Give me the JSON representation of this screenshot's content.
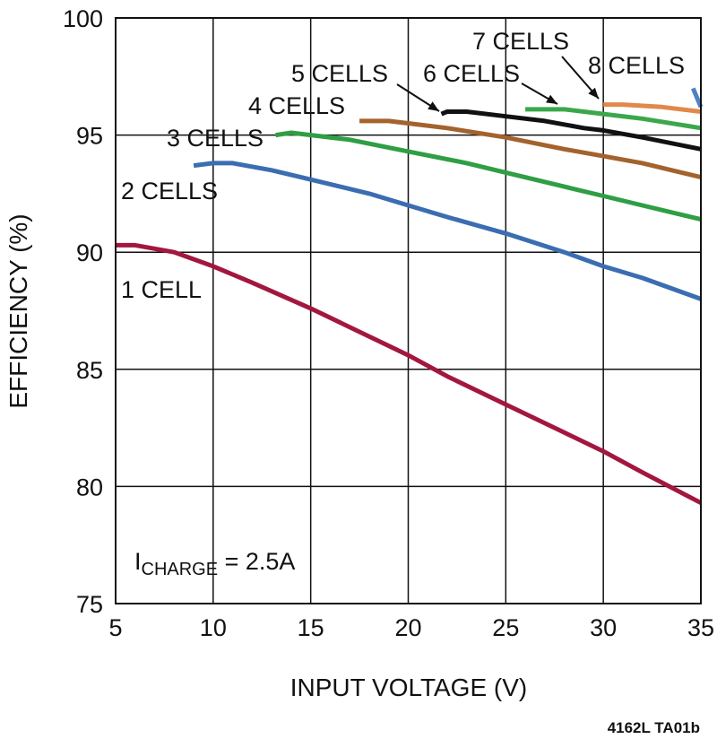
{
  "chart_data": {
    "type": "line",
    "title": "",
    "xlabel": "INPUT VOLTAGE (V)",
    "ylabel": "EFFICIENCY (%)",
    "xlim": [
      5,
      35
    ],
    "ylim": [
      75,
      100
    ],
    "xticks": [
      "5",
      "10",
      "15",
      "20",
      "25",
      "30",
      "35"
    ],
    "yticks": [
      "75",
      "80",
      "85",
      "90",
      "95",
      "100"
    ],
    "grid": true,
    "annotation": {
      "main": "I",
      "sub": "CHARGE",
      "rest": " = 2.5A"
    },
    "footnote": "4162L TA01b",
    "series": [
      {
        "name": "1 CELL",
        "color": "#a3173f",
        "x": [
          5,
          6,
          8,
          10,
          12,
          15,
          18,
          20,
          22,
          25,
          28,
          30,
          32,
          35
        ],
        "y": [
          90.3,
          90.3,
          90.0,
          89.4,
          88.7,
          87.6,
          86.4,
          85.6,
          84.7,
          83.5,
          82.3,
          81.5,
          80.6,
          79.3
        ]
      },
      {
        "name": "2 CELLS",
        "color": "#3b6db2",
        "x": [
          9,
          10,
          11,
          13,
          15,
          18,
          20,
          22,
          25,
          28,
          30,
          32,
          35
        ],
        "y": [
          93.7,
          93.8,
          93.8,
          93.5,
          93.1,
          92.5,
          92.0,
          91.5,
          90.8,
          90.0,
          89.4,
          88.9,
          88.0
        ]
      },
      {
        "name": "3 CELLS",
        "color": "#2f9e44",
        "x": [
          13.2,
          14,
          15,
          17,
          20,
          23,
          25,
          28,
          30,
          32,
          35
        ],
        "y": [
          95.0,
          95.1,
          95.0,
          94.8,
          94.3,
          93.8,
          93.4,
          92.8,
          92.4,
          92.0,
          91.4
        ]
      },
      {
        "name": "4 CELLS",
        "color": "#a4622d",
        "x": [
          17.5,
          19,
          20,
          22,
          25,
          28,
          30,
          32,
          35
        ],
        "y": [
          95.6,
          95.6,
          95.5,
          95.3,
          94.9,
          94.4,
          94.1,
          93.8,
          93.2
        ]
      },
      {
        "name": "5 CELLS",
        "color": "#111111",
        "x": [
          21.7,
          22,
          23,
          25,
          27,
          29,
          30,
          32,
          35
        ],
        "y": [
          95.9,
          96.0,
          96.0,
          95.8,
          95.6,
          95.3,
          95.2,
          94.9,
          94.4
        ]
      },
      {
        "name": "6 CELLS",
        "color": "#3aa84a",
        "x": [
          26,
          27,
          28,
          30,
          32,
          35
        ],
        "y": [
          96.1,
          96.1,
          96.1,
          95.9,
          95.7,
          95.3
        ]
      },
      {
        "name": "7 CELLS",
        "color": "#e1884b",
        "x": [
          30,
          31,
          33,
          35
        ],
        "y": [
          96.3,
          96.3,
          96.2,
          96.0
        ]
      },
      {
        "name": "8 CELLS",
        "color": "#4f82c4",
        "x": [
          34.6,
          34.8,
          35
        ],
        "y": [
          97.0,
          96.6,
          96.2
        ]
      }
    ]
  }
}
